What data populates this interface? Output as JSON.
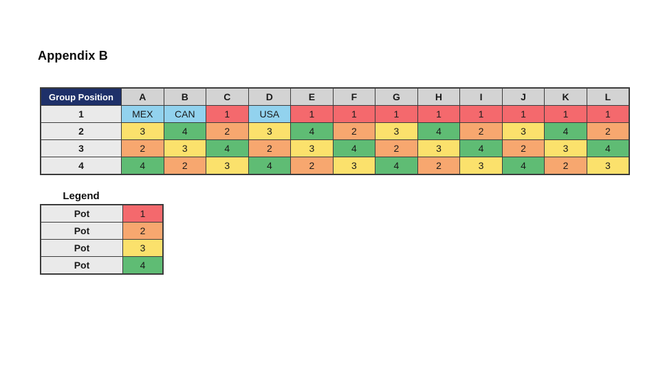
{
  "page": {
    "title": "Appendix B"
  },
  "colors": {
    "pot1": "#F4696D",
    "pot2": "#F7A76F",
    "pot3": "#FBE16C",
    "pot4": "#5FBC74",
    "host": "#92D2EE",
    "header_bg": "#1E3069",
    "header_text": "#FFFFFF",
    "col_header_bg": "#D3D3D3",
    "row_label_bg": "#EAEAEA",
    "border": "#3B3B3B"
  },
  "table": {
    "corner_label": "Group Position",
    "columns": [
      "A",
      "B",
      "C",
      "D",
      "E",
      "F",
      "G",
      "H",
      "I",
      "J",
      "K",
      "L"
    ],
    "rows": [
      {
        "label": "1",
        "cells": [
          {
            "text": "MEX",
            "color": "host"
          },
          {
            "text": "CAN",
            "color": "host"
          },
          {
            "text": "1",
            "color": "pot1"
          },
          {
            "text": "USA",
            "color": "host"
          },
          {
            "text": "1",
            "color": "pot1"
          },
          {
            "text": "1",
            "color": "pot1"
          },
          {
            "text": "1",
            "color": "pot1"
          },
          {
            "text": "1",
            "color": "pot1"
          },
          {
            "text": "1",
            "color": "pot1"
          },
          {
            "text": "1",
            "color": "pot1"
          },
          {
            "text": "1",
            "color": "pot1"
          },
          {
            "text": "1",
            "color": "pot1"
          }
        ]
      },
      {
        "label": "2",
        "cells": [
          {
            "text": "3",
            "color": "pot3"
          },
          {
            "text": "4",
            "color": "pot4"
          },
          {
            "text": "2",
            "color": "pot2"
          },
          {
            "text": "3",
            "color": "pot3"
          },
          {
            "text": "4",
            "color": "pot4"
          },
          {
            "text": "2",
            "color": "pot2"
          },
          {
            "text": "3",
            "color": "pot3"
          },
          {
            "text": "4",
            "color": "pot4"
          },
          {
            "text": "2",
            "color": "pot2"
          },
          {
            "text": "3",
            "color": "pot3"
          },
          {
            "text": "4",
            "color": "pot4"
          },
          {
            "text": "2",
            "color": "pot2"
          }
        ]
      },
      {
        "label": "3",
        "cells": [
          {
            "text": "2",
            "color": "pot2"
          },
          {
            "text": "3",
            "color": "pot3"
          },
          {
            "text": "4",
            "color": "pot4"
          },
          {
            "text": "2",
            "color": "pot2"
          },
          {
            "text": "3",
            "color": "pot3"
          },
          {
            "text": "4",
            "color": "pot4"
          },
          {
            "text": "2",
            "color": "pot2"
          },
          {
            "text": "3",
            "color": "pot3"
          },
          {
            "text": "4",
            "color": "pot4"
          },
          {
            "text": "2",
            "color": "pot2"
          },
          {
            "text": "3",
            "color": "pot3"
          },
          {
            "text": "4",
            "color": "pot4"
          }
        ]
      },
      {
        "label": "4",
        "cells": [
          {
            "text": "4",
            "color": "pot4"
          },
          {
            "text": "2",
            "color": "pot2"
          },
          {
            "text": "3",
            "color": "pot3"
          },
          {
            "text": "4",
            "color": "pot4"
          },
          {
            "text": "2",
            "color": "pot2"
          },
          {
            "text": "3",
            "color": "pot3"
          },
          {
            "text": "4",
            "color": "pot4"
          },
          {
            "text": "2",
            "color": "pot2"
          },
          {
            "text": "3",
            "color": "pot3"
          },
          {
            "text": "4",
            "color": "pot4"
          },
          {
            "text": "2",
            "color": "pot2"
          },
          {
            "text": "3",
            "color": "pot3"
          }
        ]
      }
    ]
  },
  "legend": {
    "title": "Legend",
    "rows": [
      {
        "label": "Pot",
        "value": "1",
        "color": "pot1"
      },
      {
        "label": "Pot",
        "value": "2",
        "color": "pot2"
      },
      {
        "label": "Pot",
        "value": "3",
        "color": "pot3"
      },
      {
        "label": "Pot",
        "value": "4",
        "color": "pot4"
      }
    ]
  }
}
